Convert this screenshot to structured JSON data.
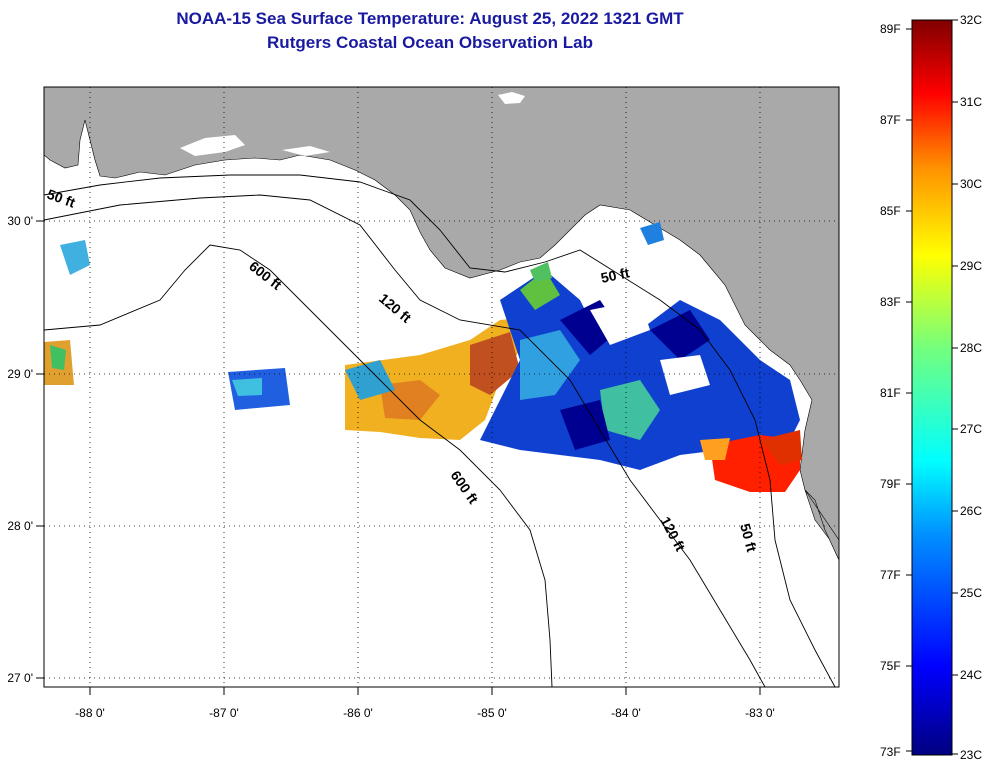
{
  "header": {
    "title": "NOAA-15 Sea Surface Temperature:  August 25, 2022 1321 GMT",
    "subtitle": "Rutgers Coastal Ocean Observation Lab"
  },
  "axes": {
    "x_ticks": [
      "-88 0'",
      "-87 0'",
      "-86 0'",
      "-85 0'",
      "-84 0'",
      "-83 0'"
    ],
    "x_values": [
      -88,
      -87,
      -86,
      -85,
      -84,
      -83
    ],
    "y_ticks": [
      "30 0'",
      "29 0'",
      "28 0'",
      "27 0'"
    ],
    "y_values": [
      30,
      29,
      28,
      27
    ],
    "lon_range": [
      -88.35,
      -82.45
    ],
    "lat_range": [
      26.97,
      30.85
    ]
  },
  "contours": {
    "labels": [
      "50 ft",
      "600 ft",
      "120 ft",
      "50 ft",
      "600 ft",
      "120 ft",
      "50 ft"
    ]
  },
  "colorbar": {
    "fahrenheit": [
      "89F",
      "87F",
      "85F",
      "83F",
      "81F",
      "79F",
      "77F",
      "75F",
      "73F"
    ],
    "celsius": [
      "32C",
      "31C",
      "30C",
      "29C",
      "28C",
      "27C",
      "26C",
      "25C",
      "24C",
      "23C"
    ],
    "range_c": [
      23,
      32
    ]
  },
  "colors": {
    "land": "#a9a9a9",
    "ocean": "#ffffff",
    "title": "#1a1aa0"
  }
}
